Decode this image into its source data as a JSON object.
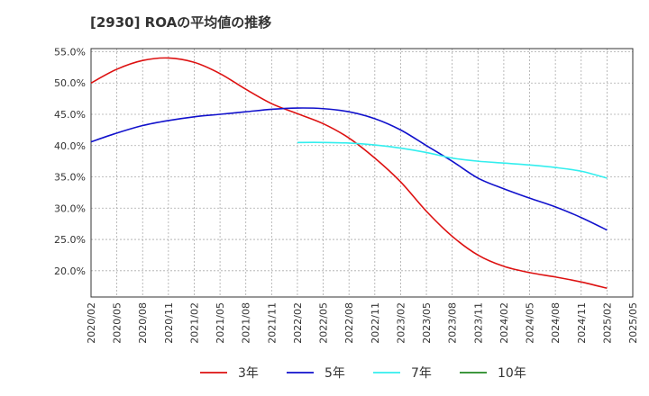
{
  "chart_data": {
    "type": "line",
    "title": "[2930]  ROAの平均値の推移",
    "xlabel": "",
    "ylabel": "",
    "x_ticks": [
      "2020/02",
      "2020/05",
      "2020/08",
      "2020/11",
      "2021/02",
      "2021/05",
      "2021/08",
      "2021/11",
      "2022/02",
      "2022/05",
      "2022/08",
      "2022/11",
      "2023/02",
      "2023/05",
      "2023/08",
      "2023/11",
      "2024/02",
      "2024/05",
      "2024/08",
      "2024/11",
      "2025/02",
      "2025/05"
    ],
    "y_ticks": [
      "55.0%",
      "50.0%",
      "45.0%",
      "40.0%",
      "35.0%",
      "30.0%",
      "25.0%",
      "20.0%"
    ],
    "y_tick_values": [
      55,
      50,
      45,
      40,
      35,
      30,
      25,
      20
    ],
    "ylim": [
      15.8,
      55.5
    ],
    "grid": true,
    "legend_position": "bottom",
    "series": [
      {
        "name": "3年",
        "color": "#dd1111",
        "x": [
          "2020/02",
          "2020/05",
          "2020/08",
          "2020/11",
          "2021/02",
          "2021/05",
          "2021/08",
          "2021/11",
          "2022/02",
          "2022/05",
          "2022/08",
          "2022/11",
          "2023/02",
          "2023/05",
          "2023/08",
          "2023/11",
          "2024/02",
          "2024/05",
          "2024/08",
          "2024/11",
          "2025/02"
        ],
        "values": [
          50.0,
          52.2,
          53.6,
          54.0,
          53.3,
          51.5,
          49.0,
          46.7,
          45.1,
          43.5,
          41.2,
          38.0,
          34.2,
          29.5,
          25.5,
          22.5,
          20.7,
          19.7,
          19.0,
          18.2,
          17.2
        ]
      },
      {
        "name": "5年",
        "color": "#1111cc",
        "x": [
          "2020/02",
          "2020/05",
          "2020/08",
          "2020/11",
          "2021/02",
          "2021/05",
          "2021/08",
          "2021/11",
          "2022/02",
          "2022/05",
          "2022/08",
          "2022/11",
          "2023/02",
          "2023/05",
          "2023/08",
          "2023/11",
          "2024/02",
          "2024/05",
          "2024/08",
          "2024/11",
          "2025/02"
        ],
        "values": [
          40.6,
          42.0,
          43.2,
          44.0,
          44.6,
          45.0,
          45.4,
          45.8,
          46.0,
          45.9,
          45.4,
          44.3,
          42.5,
          40.0,
          37.5,
          34.8,
          33.1,
          31.6,
          30.2,
          28.5,
          26.5
        ]
      },
      {
        "name": "7年",
        "color": "#33eeee",
        "x": [
          "2022/02",
          "2022/05",
          "2022/08",
          "2022/11",
          "2023/02",
          "2023/05",
          "2023/08",
          "2023/11",
          "2024/02",
          "2024/05",
          "2024/08",
          "2024/11",
          "2025/02"
        ],
        "values": [
          40.5,
          40.5,
          40.4,
          40.1,
          39.6,
          38.9,
          38.0,
          37.5,
          37.2,
          36.9,
          36.5,
          35.9,
          34.8
        ]
      },
      {
        "name": "10年",
        "color": "#228822",
        "x": [],
        "values": []
      }
    ]
  }
}
